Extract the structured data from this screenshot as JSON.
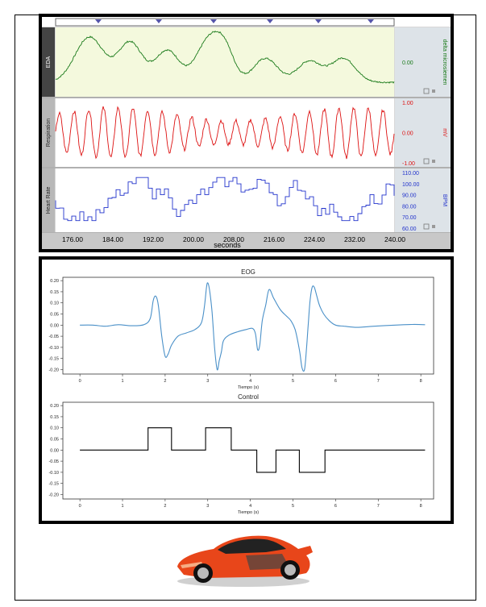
{
  "top_panel": {
    "channels": [
      {
        "name": "EDA",
        "unit": "delta microsiemen",
        "readouts": [
          "0.00"
        ],
        "color": "#1a7a1a",
        "bg": "#f4f9dd"
      },
      {
        "name": "Respiration",
        "unit": "mV",
        "readouts": [
          "1.00",
          "0.00",
          "-1.00"
        ],
        "color": "#dd1111",
        "bg": "#ffffff"
      },
      {
        "name": "Heart Rate",
        "unit": "BPM",
        "readouts": [
          "110.00",
          "100.00",
          "90.00",
          "80.00",
          "70.00",
          "60.00"
        ],
        "color": "#2233cc",
        "bg": "#ffffff"
      }
    ],
    "time_ticks": [
      "176.00",
      "184.00",
      "192.00",
      "200.00",
      "208.00",
      "216.00",
      "224.00",
      "232.00",
      "240.00"
    ],
    "time_label": "seconds"
  },
  "chart_data": [
    {
      "type": "line",
      "title": "EOG",
      "xlabel": "Tiempo (s)",
      "ylabel": "",
      "xlim": [
        -0.4,
        8.3
      ],
      "ylim": [
        -0.22,
        0.215
      ],
      "xticks": [
        "0",
        "1",
        "2",
        "3",
        "4",
        "5",
        "6",
        "7",
        "8"
      ],
      "yticks": [
        "0.20",
        "0.15",
        "0.10",
        "0.05",
        "0.00",
        "-0.05",
        "-0.10",
        "-0.15",
        "-0.20"
      ],
      "color": "#4a90c8",
      "x": [
        0,
        0.3,
        0.6,
        0.9,
        1.2,
        1.5,
        1.65,
        1.72,
        1.78,
        1.84,
        1.92,
        2.0,
        2.07,
        2.15,
        2.3,
        2.5,
        2.7,
        2.85,
        2.92,
        2.97,
        3.0,
        3.04,
        3.1,
        3.16,
        3.22,
        3.27,
        3.32,
        3.37,
        3.5,
        3.7,
        3.9,
        4.05,
        4.12,
        4.17,
        4.22,
        4.28,
        4.36,
        4.44,
        4.55,
        4.7,
        4.85,
        4.95,
        5.05,
        5.15,
        5.21,
        5.27,
        5.32,
        5.36,
        5.4,
        5.45,
        5.5,
        5.56,
        5.62,
        5.72,
        5.85,
        6.0,
        6.2,
        6.5,
        6.9,
        7.4,
        7.8,
        8.1
      ],
      "y": [
        0,
        0,
        -0.005,
        0.002,
        -0.003,
        0.002,
        0.03,
        0.11,
        0.13,
        0.09,
        -0.05,
        -0.14,
        -0.13,
        -0.09,
        -0.05,
        -0.035,
        -0.02,
        0.01,
        0.08,
        0.17,
        0.19,
        0.16,
        0.06,
        -0.1,
        -0.2,
        -0.16,
        -0.12,
        -0.07,
        -0.045,
        -0.03,
        -0.02,
        -0.015,
        -0.04,
        -0.11,
        -0.09,
        0.02,
        0.09,
        0.16,
        0.12,
        0.07,
        0.04,
        0.02,
        -0.02,
        -0.11,
        -0.19,
        -0.2,
        -0.1,
        0.01,
        0.11,
        0.17,
        0.17,
        0.13,
        0.09,
        0.05,
        0.02,
        0.0,
        -0.005,
        -0.01,
        -0.005,
        0,
        0.003,
        0.002
      ]
    },
    {
      "type": "line",
      "title": "Control",
      "xlabel": "Tiempo (s)",
      "ylabel": "",
      "xlim": [
        -0.4,
        8.3
      ],
      "ylim": [
        -0.22,
        0.215
      ],
      "xticks": [
        "0",
        "1",
        "2",
        "3",
        "4",
        "5",
        "6",
        "7",
        "8"
      ],
      "yticks": [
        "0.20",
        "0.15",
        "0.10",
        "0.05",
        "0.00",
        "-0.05",
        "-0.10",
        "-0.15",
        "-0.20"
      ],
      "color": "#000000",
      "x": [
        0,
        1.6,
        1.6,
        2.15,
        2.15,
        2.95,
        2.95,
        3.55,
        3.55,
        4.15,
        4.15,
        4.6,
        4.6,
        5.15,
        5.15,
        5.75,
        5.75,
        8.1
      ],
      "y": [
        0,
        0,
        0.1,
        0.1,
        0,
        0,
        0.1,
        0.1,
        0,
        0,
        -0.1,
        -0.1,
        0,
        0,
        -0.1,
        -0.1,
        0,
        0
      ]
    }
  ]
}
